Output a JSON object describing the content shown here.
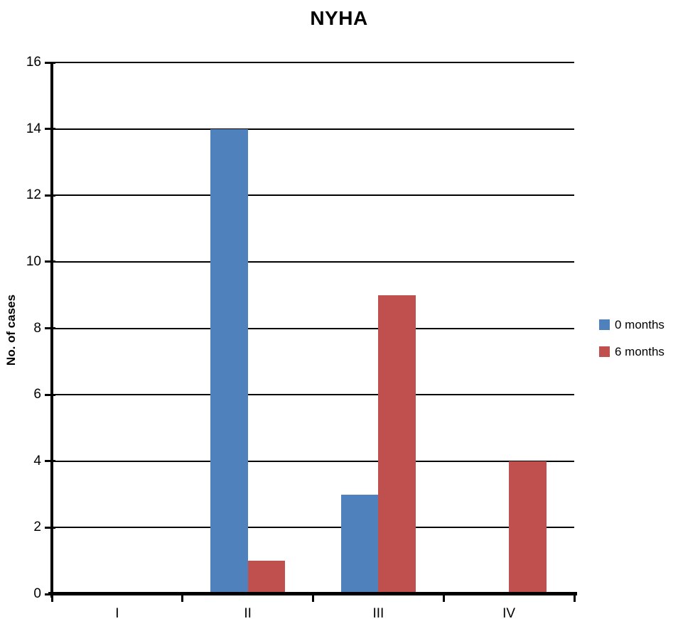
{
  "chart_data": {
    "type": "bar",
    "title": "NYHA",
    "ylabel": "No. of cases",
    "xlabel": "",
    "categories": [
      "I",
      "II",
      "III",
      "IV"
    ],
    "series": [
      {
        "name": "0 months",
        "color": "#4F81BD",
        "values": [
          0,
          14,
          3,
          0
        ]
      },
      {
        "name": "6 months",
        "color": "#C0504D",
        "values": [
          0,
          1,
          9,
          4
        ]
      }
    ],
    "ylim": [
      0,
      16
    ],
    "ytick_step": 2,
    "ytick_labels": [
      "0",
      "2",
      "4",
      "6",
      "8",
      "10",
      "12",
      "14",
      "16"
    ],
    "grid": "horizontal",
    "gridline_color": "#000000",
    "axis_color": "#000000",
    "background": "#FFFFFF",
    "legend_position": "right-middle",
    "bar_gap_ratio": 1.5
  }
}
